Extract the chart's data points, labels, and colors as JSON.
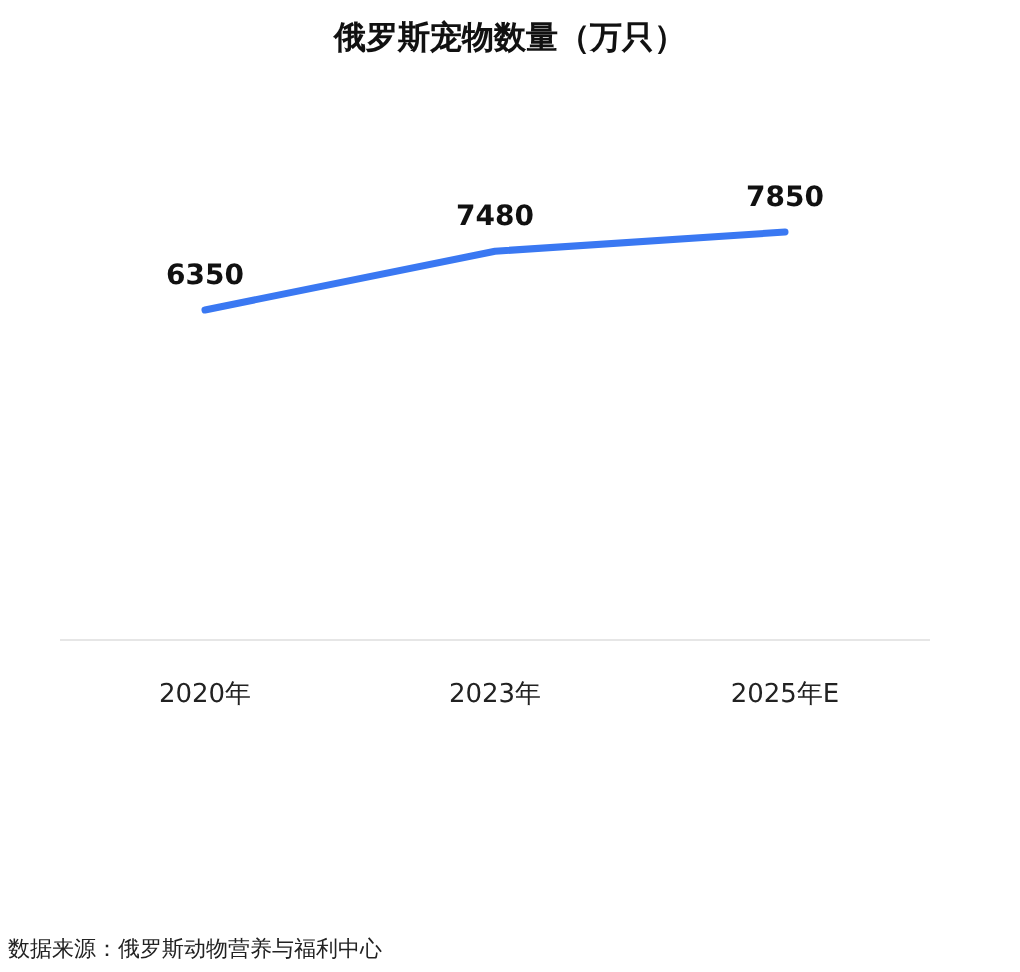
{
  "chart_data": {
    "type": "line",
    "title": "俄罗斯宠物数量（万只）",
    "categories": [
      "2020年",
      "2023年",
      "2025年E"
    ],
    "series": [
      {
        "color": "#3a78f2",
        "values": [
          6350,
          7480,
          7850
        ]
      }
    ],
    "tick_labels": "x",
    "data_labels": true,
    "marker": "none",
    "line_style": "solid",
    "annotations": [
      "数据来源：俄罗斯动物营养与福利中心"
    ]
  }
}
